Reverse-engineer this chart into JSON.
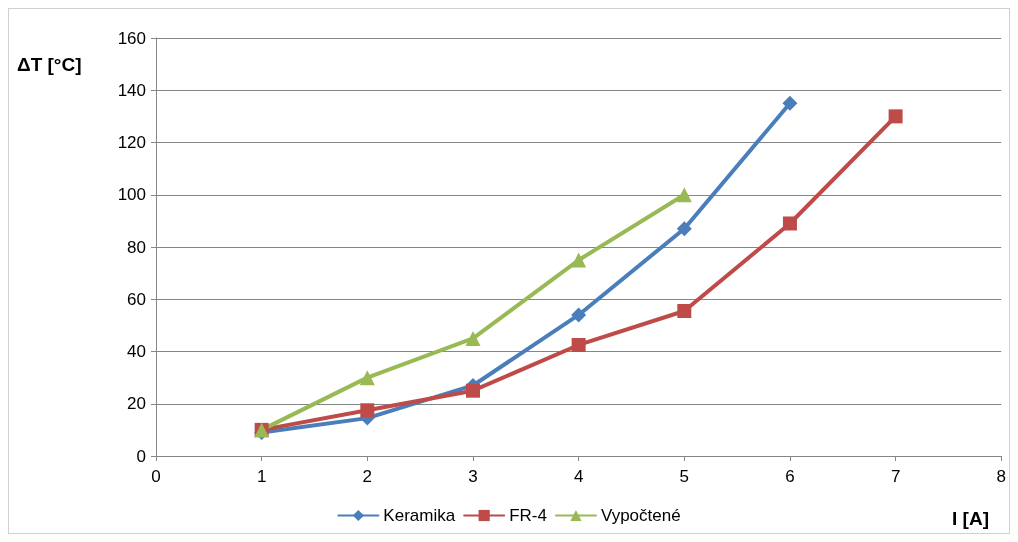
{
  "chart_data": {
    "type": "line",
    "xlabel": "I [A]",
    "ylabel": "ΔT [°C]",
    "xlim": [
      0,
      8
    ],
    "xticks": [
      0,
      1,
      2,
      3,
      4,
      5,
      6,
      7,
      8
    ],
    "ylim": [
      0,
      160
    ],
    "yticks": [
      0,
      20,
      40,
      60,
      80,
      100,
      120,
      140,
      160
    ],
    "grid": "y",
    "legend": "bottom",
    "line_style": "solid",
    "series": [
      {
        "name": "Keramika",
        "color": "#4a7ebb",
        "marker": "diamond",
        "x": [
          1,
          2,
          3,
          4,
          5,
          6
        ],
        "values": [
          9,
          14.5,
          27,
          54,
          87,
          135
        ]
      },
      {
        "name": "FR-4",
        "color": "#be4b48",
        "marker": "square",
        "x": [
          1,
          2,
          3,
          4,
          5,
          6,
          7
        ],
        "values": [
          10,
          17.5,
          25,
          42.5,
          55.5,
          89,
          130
        ]
      },
      {
        "name": "Vypočtené",
        "color": "#98b954",
        "marker": "triangle",
        "x": [
          1,
          2,
          3,
          4,
          5
        ],
        "values": [
          10,
          30,
          45,
          75,
          100
        ]
      }
    ]
  }
}
